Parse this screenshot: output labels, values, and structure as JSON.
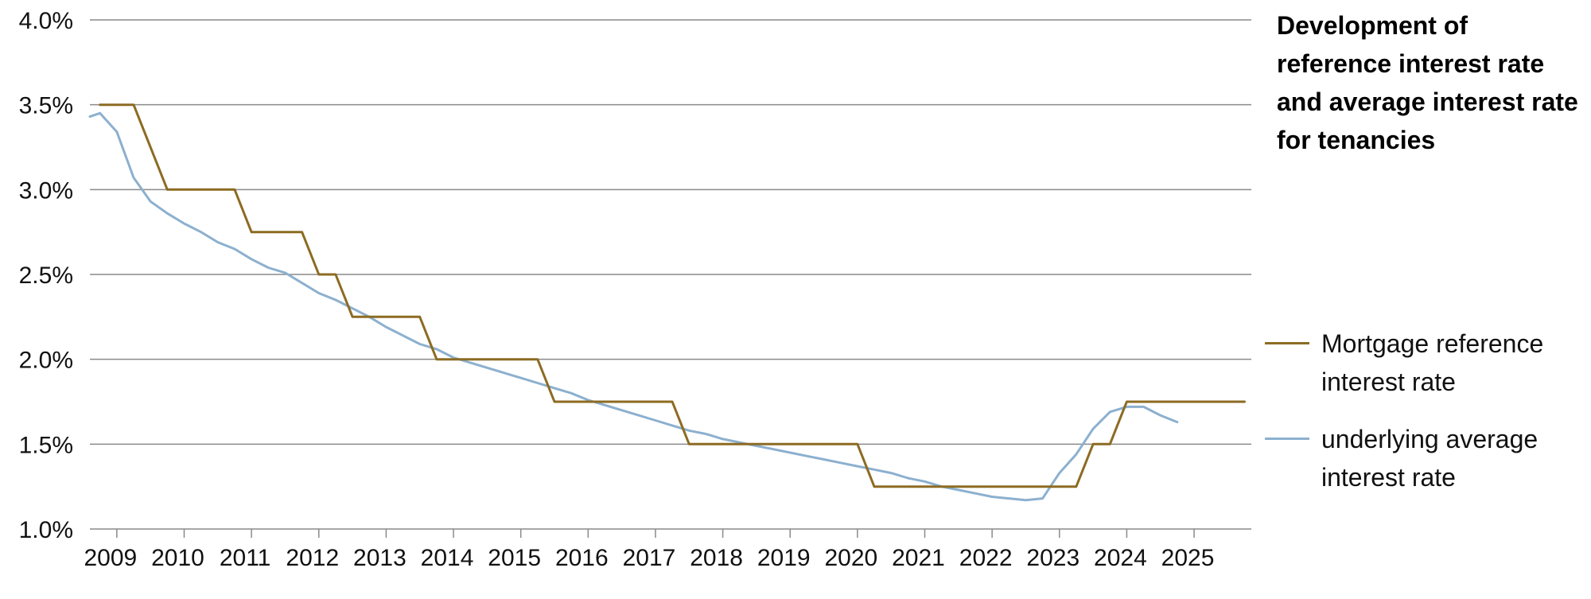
{
  "chart_data": {
    "type": "line",
    "title_lines": [
      "Development of",
      "reference interest rate",
      "and average interest rate",
      "for tenancies"
    ],
    "xlabel": "",
    "ylabel": "",
    "x_tick_labels": [
      "2009",
      "2010",
      "2011",
      "2012",
      "2013",
      "2014",
      "2015",
      "2016",
      "2017",
      "2018",
      "2019",
      "2020",
      "2021",
      "2022",
      "2023",
      "2024",
      "2025"
    ],
    "y_tick_labels": [
      "1.0%",
      "1.5%",
      "2.0%",
      "2.5%",
      "3.0%",
      "3.5%",
      "4.0%"
    ],
    "y_ticks": [
      1.0,
      1.5,
      2.0,
      2.5,
      3.0,
      3.5,
      4.0
    ],
    "xlim": [
      2008.6,
      2025.85
    ],
    "ylim": [
      1.0,
      4.0
    ],
    "grid": "horizontal",
    "legend_position": "right",
    "series": [
      {
        "name_lines": [
          "Mortgage reference",
          "interest rate"
        ],
        "color": "#8c6b22",
        "points": [
          [
            2008.75,
            3.5
          ],
          [
            2009.25,
            3.5
          ],
          [
            2009.75,
            3.0
          ],
          [
            2010.75,
            3.0
          ],
          [
            2011.0,
            2.75
          ],
          [
            2011.75,
            2.75
          ],
          [
            2012.0,
            2.5
          ],
          [
            2012.25,
            2.5
          ],
          [
            2012.5,
            2.25
          ],
          [
            2013.5,
            2.25
          ],
          [
            2013.75,
            2.0
          ],
          [
            2015.25,
            2.0
          ],
          [
            2015.5,
            1.75
          ],
          [
            2017.25,
            1.75
          ],
          [
            2017.5,
            1.5
          ],
          [
            2020.0,
            1.5
          ],
          [
            2020.25,
            1.25
          ],
          [
            2023.25,
            1.25
          ],
          [
            2023.5,
            1.5
          ],
          [
            2023.75,
            1.5
          ],
          [
            2024.0,
            1.75
          ],
          [
            2025.75,
            1.75
          ]
        ]
      },
      {
        "name_lines": [
          "underlying average",
          "interest rate"
        ],
        "color": "#8cb0cf",
        "points": [
          [
            2008.6,
            3.43
          ],
          [
            2008.75,
            3.45
          ],
          [
            2009.0,
            3.34
          ],
          [
            2009.25,
            3.07
          ],
          [
            2009.5,
            2.93
          ],
          [
            2009.75,
            2.86
          ],
          [
            2010.0,
            2.8
          ],
          [
            2010.25,
            2.75
          ],
          [
            2010.5,
            2.69
          ],
          [
            2010.75,
            2.65
          ],
          [
            2011.0,
            2.59
          ],
          [
            2011.25,
            2.54
          ],
          [
            2011.5,
            2.51
          ],
          [
            2011.75,
            2.45
          ],
          [
            2012.0,
            2.39
          ],
          [
            2012.25,
            2.35
          ],
          [
            2012.5,
            2.3
          ],
          [
            2012.75,
            2.25
          ],
          [
            2013.0,
            2.19
          ],
          [
            2013.25,
            2.14
          ],
          [
            2013.5,
            2.09
          ],
          [
            2013.75,
            2.06
          ],
          [
            2014.0,
            2.01
          ],
          [
            2014.25,
            1.98
          ],
          [
            2014.5,
            1.95
          ],
          [
            2014.75,
            1.92
          ],
          [
            2015.0,
            1.89
          ],
          [
            2015.25,
            1.86
          ],
          [
            2015.5,
            1.83
          ],
          [
            2015.75,
            1.8
          ],
          [
            2016.0,
            1.76
          ],
          [
            2016.25,
            1.73
          ],
          [
            2016.5,
            1.7
          ],
          [
            2016.75,
            1.67
          ],
          [
            2017.0,
            1.64
          ],
          [
            2017.25,
            1.61
          ],
          [
            2017.5,
            1.58
          ],
          [
            2017.75,
            1.56
          ],
          [
            2018.0,
            1.53
          ],
          [
            2018.25,
            1.51
          ],
          [
            2018.5,
            1.49
          ],
          [
            2018.75,
            1.47
          ],
          [
            2019.0,
            1.45
          ],
          [
            2019.25,
            1.43
          ],
          [
            2019.5,
            1.41
          ],
          [
            2019.75,
            1.39
          ],
          [
            2020.0,
            1.37
          ],
          [
            2020.25,
            1.35
          ],
          [
            2020.5,
            1.33
          ],
          [
            2020.75,
            1.3
          ],
          [
            2021.0,
            1.28
          ],
          [
            2021.25,
            1.25
          ],
          [
            2021.5,
            1.23
          ],
          [
            2021.75,
            1.21
          ],
          [
            2022.0,
            1.19
          ],
          [
            2022.25,
            1.18
          ],
          [
            2022.5,
            1.17
          ],
          [
            2022.75,
            1.18
          ],
          [
            2023.0,
            1.33
          ],
          [
            2023.25,
            1.44
          ],
          [
            2023.5,
            1.59
          ],
          [
            2023.75,
            1.69
          ],
          [
            2024.0,
            1.72
          ],
          [
            2024.25,
            1.72
          ],
          [
            2024.5,
            1.67
          ],
          [
            2024.75,
            1.63
          ]
        ]
      }
    ]
  }
}
